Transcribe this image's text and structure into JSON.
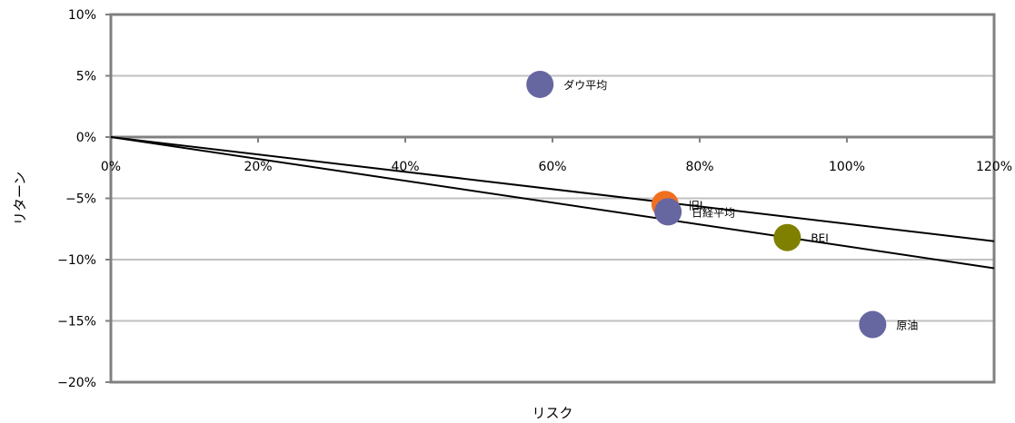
{
  "chart_data": {
    "type": "scatter",
    "xlabel": "リスク",
    "ylabel": "リターン",
    "xlim": [
      0,
      120
    ],
    "ylim": [
      -20,
      10
    ],
    "x_ticks": [
      0,
      20,
      40,
      60,
      80,
      100,
      120
    ],
    "x_tick_labels": [
      "0%",
      "20%",
      "40%",
      "60%",
      "80%",
      "100%",
      "120%"
    ],
    "y_ticks": [
      10,
      5,
      0,
      -5,
      -10,
      -15,
      -20
    ],
    "y_tick_labels": [
      "10%",
      "5%",
      "0%",
      "−5%",
      "−10%",
      "−15%",
      "−20%"
    ],
    "grid": "horizontal",
    "points": [
      {
        "label": "ダウ平均",
        "x": 58.3,
        "y": 4.3,
        "color": "#6666a0"
      },
      {
        "label": "旧L",
        "x": 75.3,
        "y": -5.5,
        "color": "#f07020"
      },
      {
        "label": "日経平均",
        "x": 75.7,
        "y": -6.1,
        "color": "#6666a0"
      },
      {
        "label": "BEI",
        "x": 91.9,
        "y": -8.2,
        "color": "#808000"
      },
      {
        "label": "原油",
        "x": 103.5,
        "y": -15.3,
        "color": "#6666a0"
      }
    ],
    "lines": [
      {
        "from": [
          0,
          0
        ],
        "to": [
          120,
          -8.5
        ],
        "color": "#000000"
      },
      {
        "from": [
          0,
          0
        ],
        "to": [
          120,
          -10.7
        ],
        "color": "#000000"
      }
    ],
    "colors": {
      "frame": "#808080",
      "grid": "#c0c0c0"
    }
  }
}
